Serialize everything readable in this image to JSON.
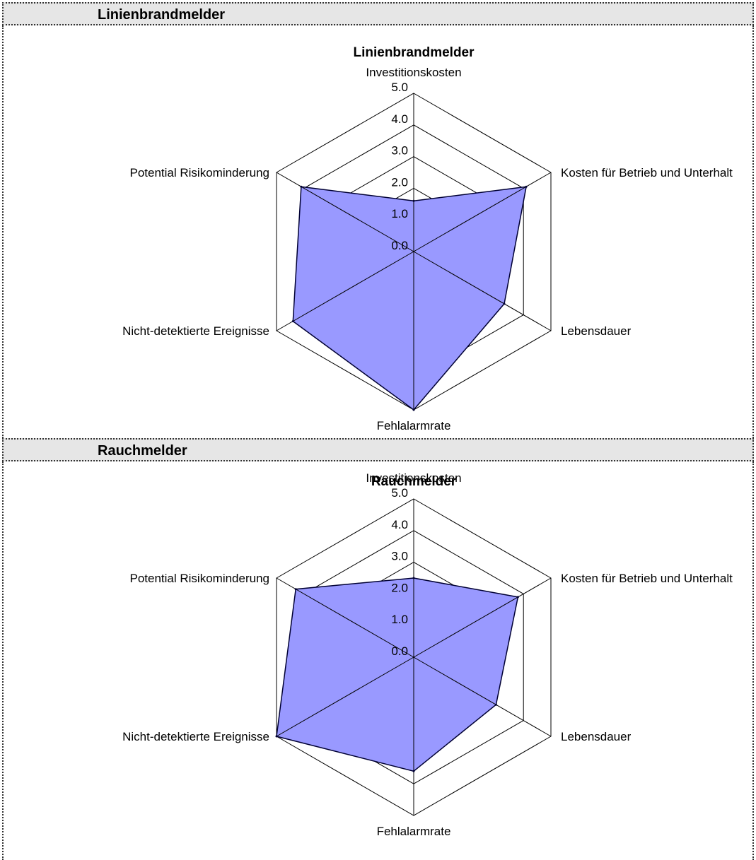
{
  "sections": [
    {
      "header": "Linienbrandmelder",
      "chart": {
        "type": "radar",
        "title": "Linienbrandmelder",
        "axes": [
          "Investitionskosten",
          "Kosten für Betrieb und Unterhalt",
          "Lebensdauer",
          "Fehlalarmrate",
          "Nicht-detektierte Ereignisse",
          "Potential Risikominderung"
        ],
        "tick_labels": [
          "0.0",
          "1.0",
          "2.0",
          "3.0",
          "4.0",
          "5.0"
        ],
        "range": [
          0,
          5
        ],
        "values": [
          1.6,
          4.1,
          3.3,
          5.0,
          4.4,
          4.1
        ],
        "fill_color": "#9999ff",
        "line_color": "#000033"
      }
    },
    {
      "header": "Rauchmelder",
      "chart": {
        "type": "radar",
        "title": "Rauchmelder",
        "axes": [
          "Investitionskosten",
          "Kosten für Betrieb und Unterhalt",
          "Lebensdauer",
          "Fehlalarmrate",
          "Nicht-detektierte Ereignisse",
          "Potential Risikominderung"
        ],
        "tick_labels": [
          "0.0",
          "1.0",
          "2.0",
          "3.0",
          "4.0",
          "5.0"
        ],
        "range": [
          0,
          5
        ],
        "values": [
          2.5,
          3.8,
          3.0,
          3.6,
          5.0,
          4.3
        ],
        "fill_color": "#9999ff",
        "line_color": "#000033"
      }
    }
  ],
  "chart_data": [
    {
      "type": "radar",
      "title": "Linienbrandmelder",
      "categories": [
        "Investitionskosten",
        "Kosten für Betrieb und Unterhalt",
        "Lebensdauer",
        "Fehlalarmrate",
        "Nicht-detektierte Ereignisse",
        "Potential Risikominderung"
      ],
      "values": [
        1.6,
        4.1,
        3.3,
        5.0,
        4.4,
        4.1
      ],
      "ylim": [
        0,
        5
      ]
    },
    {
      "type": "radar",
      "title": "Rauchmelder",
      "categories": [
        "Investitionskosten",
        "Kosten für Betrieb und Unterhalt",
        "Lebensdauer",
        "Fehlalarmrate",
        "Nicht-detektierte Ereignisse",
        "Potential Risikominderung"
      ],
      "values": [
        2.5,
        3.8,
        3.0,
        3.6,
        5.0,
        4.3
      ],
      "ylim": [
        0,
        5
      ]
    }
  ]
}
